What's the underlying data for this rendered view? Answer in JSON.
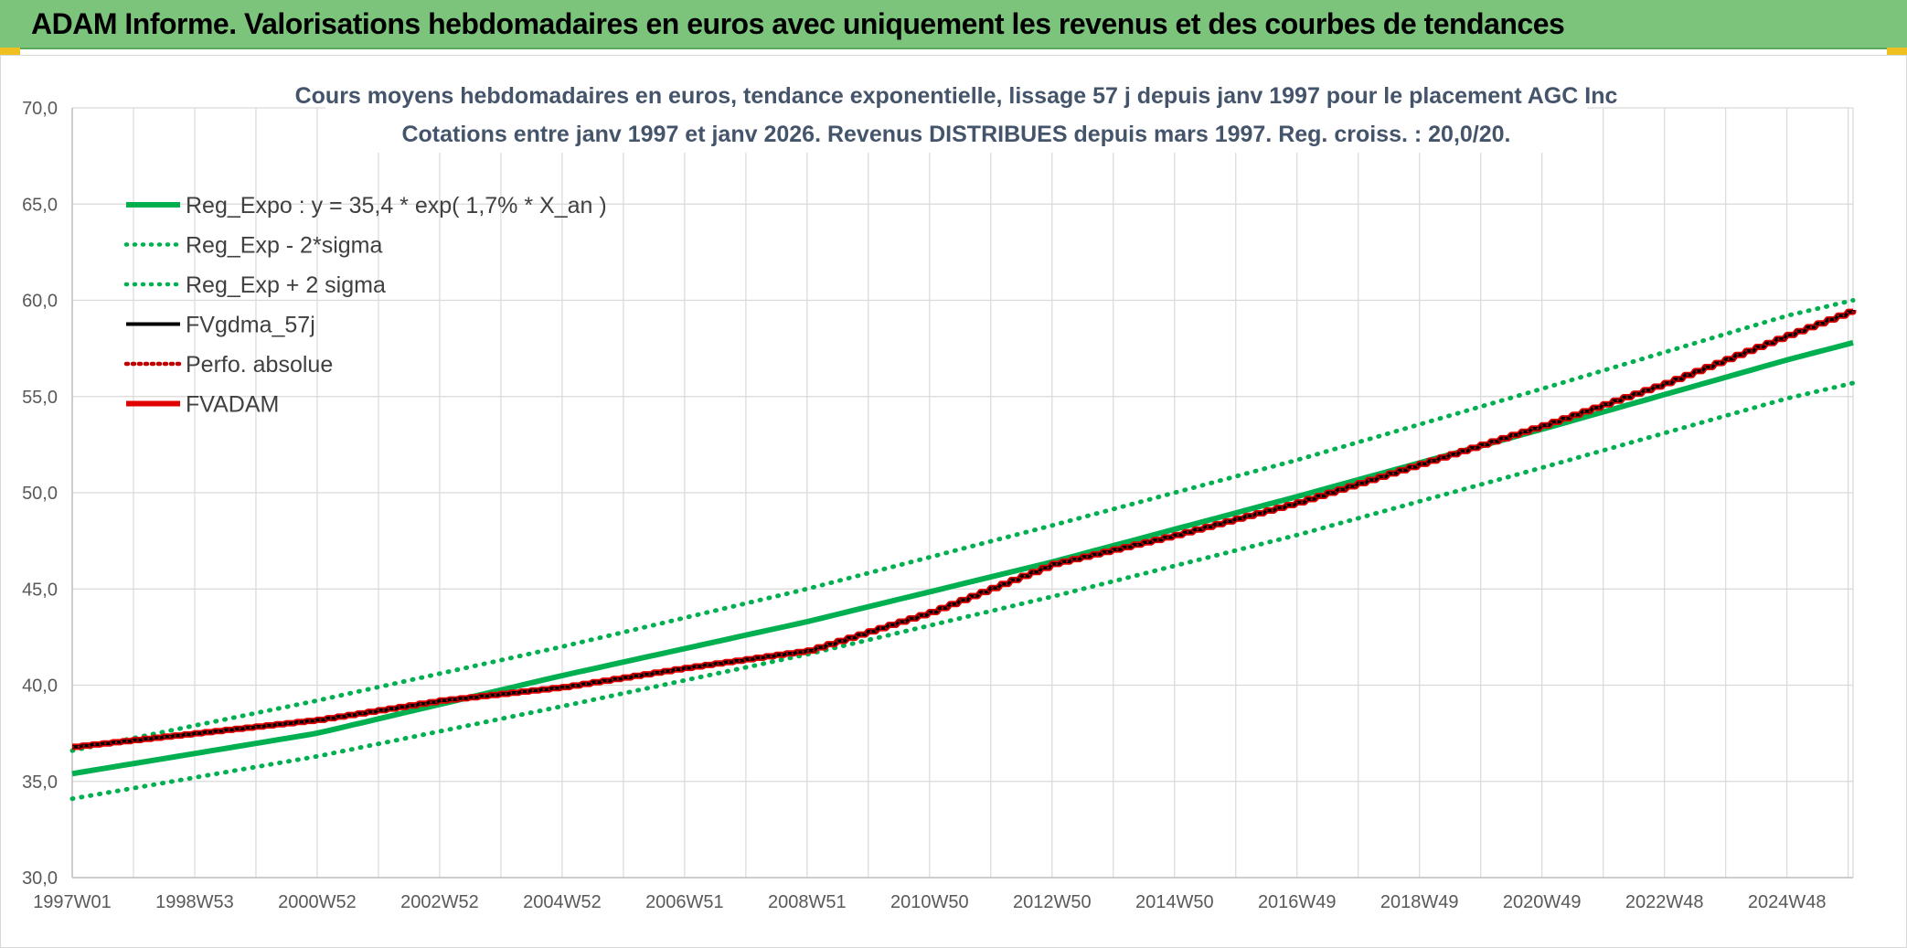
{
  "banner": {
    "title": "ADAM Informe. Valorisations hebdomadaires en euros avec uniquement les revenus et des courbes de tendances",
    "background_color": "#7cc47c"
  },
  "chart_data": {
    "type": "line",
    "title_lines": [
      "Cours moyens hebdomadaires en euros, tendance exponentielle, lissage 57 j depuis janv 1997 pour le placement AGC Inc",
      "Cotations entre janv 1997 et janv 2026. Revenus DISTRIBUES depuis mars 1997. Reg. croiss. : 20,0/20."
    ],
    "xlabel": "",
    "ylabel": "",
    "ylim": [
      30,
      70
    ],
    "xlim": [
      1997.0,
      2026.08
    ],
    "grid": true,
    "legend_position": "top-left",
    "y_ticks": [
      "30,0",
      "35,0",
      "40,0",
      "45,0",
      "50,0",
      "55,0",
      "60,0",
      "65,0",
      "70,0"
    ],
    "x_ticks": [
      {
        "label": "1997W01",
        "x": 1997.0
      },
      {
        "label": "1998W53",
        "x": 1999.0
      },
      {
        "label": "2000W52",
        "x": 2001.0
      },
      {
        "label": "2002W52",
        "x": 2003.0
      },
      {
        "label": "2004W52",
        "x": 2005.0
      },
      {
        "label": "2006W51",
        "x": 2007.0
      },
      {
        "label": "2008W51",
        "x": 2009.0
      },
      {
        "label": "2010W50",
        "x": 2011.0
      },
      {
        "label": "2012W50",
        "x": 2013.0
      },
      {
        "label": "2014W50",
        "x": 2015.0
      },
      {
        "label": "2016W49",
        "x": 2017.0
      },
      {
        "label": "2018W49",
        "x": 2019.0
      },
      {
        "label": "2020W49",
        "x": 2021.0
      },
      {
        "label": "2022W48",
        "x": 2023.0
      },
      {
        "label": "2024W48",
        "x": 2025.0
      }
    ],
    "series": [
      {
        "name": "Reg_Expo : y = 35,4 * exp( 1,7% *  X_an )",
        "color": "#00b050",
        "style": "solid",
        "x": [
          1997.0,
          2001.0,
          2005.0,
          2009.0,
          2013.0,
          2017.0,
          2021.0,
          2025.0,
          2026.08
        ],
        "y": [
          35.4,
          37.5,
          40.5,
          43.3,
          46.4,
          49.8,
          53.3,
          56.9,
          57.8
        ]
      },
      {
        "name": "Reg_Exp - 2*sigma",
        "color": "#00b050",
        "style": "dotted",
        "x": [
          1997.0,
          2001.0,
          2005.0,
          2009.0,
          2013.0,
          2017.0,
          2021.0,
          2025.0,
          2026.08
        ],
        "y": [
          34.1,
          36.3,
          38.9,
          41.6,
          44.6,
          47.8,
          51.3,
          54.9,
          55.7
        ]
      },
      {
        "name": "Reg_Exp + 2 sigma",
        "color": "#00b050",
        "style": "dotted",
        "x": [
          1997.0,
          2001.0,
          2005.0,
          2009.0,
          2013.0,
          2017.0,
          2021.0,
          2025.0,
          2026.08
        ],
        "y": [
          36.6,
          39.2,
          42.0,
          45.0,
          48.3,
          51.7,
          55.4,
          59.2,
          60.0
        ]
      },
      {
        "name": "FVgdma_57j",
        "color": "#000000",
        "style": "solid",
        "x": [
          1997.0,
          1999.0,
          2001.0,
          2003.0,
          2005.0,
          2007.0,
          2009.0,
          2011.0,
          2013.0,
          2015.0,
          2017.0,
          2019.0,
          2021.0,
          2023.0,
          2025.0,
          2026.08
        ],
        "y": [
          36.8,
          37.5,
          38.2,
          39.2,
          39.9,
          40.9,
          41.8,
          43.8,
          46.3,
          47.8,
          49.5,
          51.5,
          53.5,
          55.7,
          58.2,
          59.5
        ]
      },
      {
        "name": "Perfo. absolue",
        "color": "#c00000",
        "style": "dotted",
        "x": [
          1997.0,
          1999.0,
          2001.0,
          2003.0,
          2005.0,
          2007.0,
          2009.0,
          2011.0,
          2013.0,
          2015.0,
          2017.0,
          2019.0,
          2021.0,
          2023.0,
          2025.0,
          2026.08
        ],
        "y": [
          36.8,
          37.5,
          38.2,
          39.2,
          39.9,
          40.9,
          41.8,
          43.8,
          46.3,
          47.8,
          49.5,
          51.5,
          53.5,
          55.7,
          58.2,
          59.5
        ]
      },
      {
        "name": "FVADAM",
        "color": "#e00000",
        "style": "solid",
        "x": [
          1997.0,
          1999.0,
          2001.0,
          2003.0,
          2005.0,
          2007.0,
          2009.0,
          2011.0,
          2013.0,
          2015.0,
          2017.0,
          2019.0,
          2021.0,
          2023.0,
          2025.0,
          2026.08
        ],
        "y": [
          36.8,
          37.5,
          38.2,
          39.2,
          39.9,
          40.9,
          41.8,
          43.8,
          46.3,
          47.8,
          49.5,
          51.5,
          53.5,
          55.7,
          58.2,
          59.5
        ]
      }
    ]
  }
}
